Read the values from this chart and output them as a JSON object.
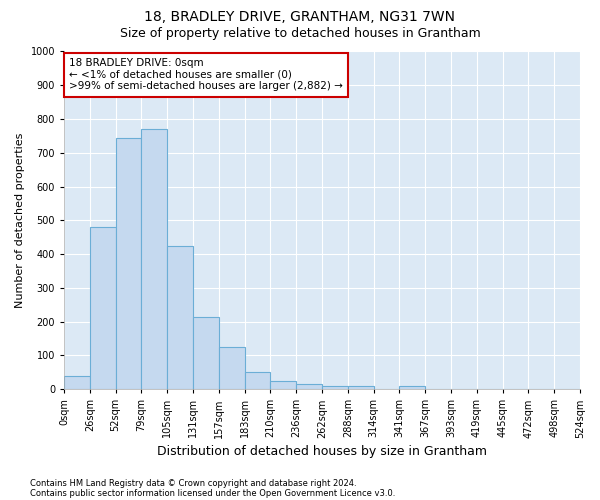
{
  "title": "18, BRADLEY DRIVE, GRANTHAM, NG31 7WN",
  "subtitle": "Size of property relative to detached houses in Grantham",
  "xlabel": "Distribution of detached houses by size in Grantham",
  "ylabel": "Number of detached properties",
  "bar_values": [
    40,
    480,
    745,
    770,
    425,
    215,
    125,
    50,
    25,
    15,
    10,
    8,
    0,
    8,
    0,
    0,
    0,
    0,
    0,
    0
  ],
  "bar_color": "#c5d9ef",
  "bar_edge_color": "#6baed6",
  "xlabels": [
    "0sqm",
    "26sqm",
    "52sqm",
    "79sqm",
    "105sqm",
    "131sqm",
    "157sqm",
    "183sqm",
    "210sqm",
    "236sqm",
    "262sqm",
    "288sqm",
    "314sqm",
    "341sqm",
    "367sqm",
    "393sqm",
    "419sqm",
    "445sqm",
    "472sqm",
    "498sqm",
    "524sqm"
  ],
  "ylim": [
    0,
    1000
  ],
  "yticks": [
    0,
    100,
    200,
    300,
    400,
    500,
    600,
    700,
    800,
    900,
    1000
  ],
  "annotation_title": "18 BRADLEY DRIVE: 0sqm",
  "annotation_line1": "← <1% of detached houses are smaller (0)",
  "annotation_line2": ">99% of semi-detached houses are larger (2,882) →",
  "annotation_box_color": "#ffffff",
  "annotation_box_edge": "#cc0000",
  "footer1": "Contains HM Land Registry data © Crown copyright and database right 2024.",
  "footer2": "Contains public sector information licensed under the Open Government Licence v3.0.",
  "bg_color": "#ffffff",
  "plot_bg_color": "#dce9f5",
  "grid_color": "#ffffff",
  "title_fontsize": 10,
  "subtitle_fontsize": 9,
  "tick_fontsize": 7,
  "ylabel_fontsize": 8,
  "xlabel_fontsize": 9,
  "annotation_fontsize": 7.5,
  "footer_fontsize": 6
}
